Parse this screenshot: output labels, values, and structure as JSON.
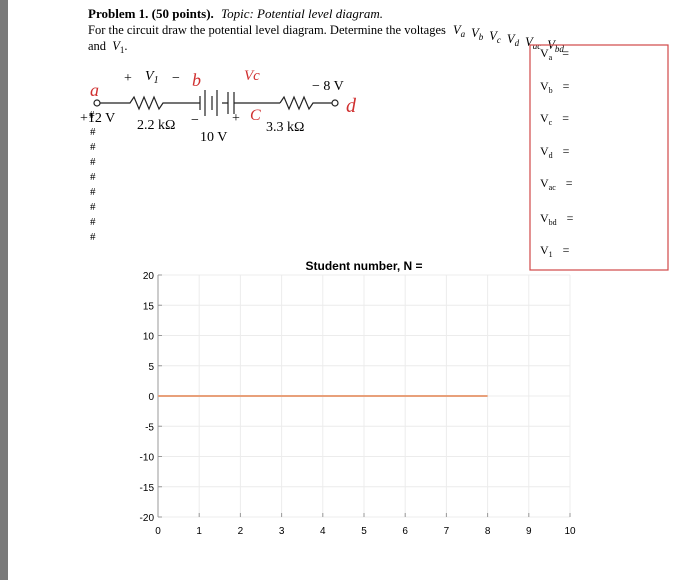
{
  "header": {
    "problem": "Problem 1. (50 points).",
    "topic": "Topic: Potential level diagram.",
    "line2": "For the circuit draw the potential level diagram. Determine the voltages",
    "voltages": [
      {
        "v": "V",
        "sub": "a"
      },
      {
        "v": "V",
        "sub": "b"
      },
      {
        "v": "V",
        "sub": "c"
      },
      {
        "v": "V",
        "sub": "d"
      },
      {
        "v": "V",
        "sub": "ac"
      },
      {
        "v": "V",
        "sub": "bd"
      }
    ],
    "line3": "and",
    "last": {
      "v": "V",
      "sub": "1"
    }
  },
  "circuit": {
    "node_a": "a",
    "plus1": "+",
    "v1": "V",
    "v1_sub": "1",
    "minus1": "−",
    "node_b": "b",
    "vc": "Vc",
    "minus8": "− 8 V",
    "node_d": "d",
    "plus12": "+12 V",
    "hash0": "#",
    "r1": "2.2 kΩ",
    "minus2": "−",
    "v10": "10 V",
    "plus2": "+",
    "node_c": "C",
    "r2": "3.3 kΩ",
    "hashes": [
      "#",
      "#",
      "#",
      "#",
      "#",
      "#",
      "#",
      "#"
    ]
  },
  "answers": [
    {
      "v": "V",
      "sub": "a",
      "eq": "="
    },
    {
      "v": "V",
      "sub": "b",
      "eq": "="
    },
    {
      "v": "V",
      "sub": "c",
      "eq": "="
    },
    {
      "v": "V",
      "sub": "d",
      "eq": "="
    },
    {
      "v": "V",
      "sub": "ac",
      "eq": "="
    },
    {
      "v": "V",
      "sub": "bd",
      "eq": "="
    },
    {
      "v": "V",
      "sub": "1",
      "eq": "="
    }
  ],
  "chart_data": {
    "type": "line",
    "title": "Student number, N =",
    "x": [
      0,
      8
    ],
    "values": [
      0,
      0
    ],
    "color": "#e8a07a",
    "xlim": [
      0,
      10
    ],
    "ylim": [
      -20,
      20
    ],
    "xticks": [
      0,
      1,
      2,
      3,
      4,
      5,
      6,
      7,
      8,
      9,
      10
    ],
    "yticks": [
      20,
      15,
      10,
      5,
      0,
      -5,
      -10,
      -15,
      -20
    ],
    "grid": true
  }
}
